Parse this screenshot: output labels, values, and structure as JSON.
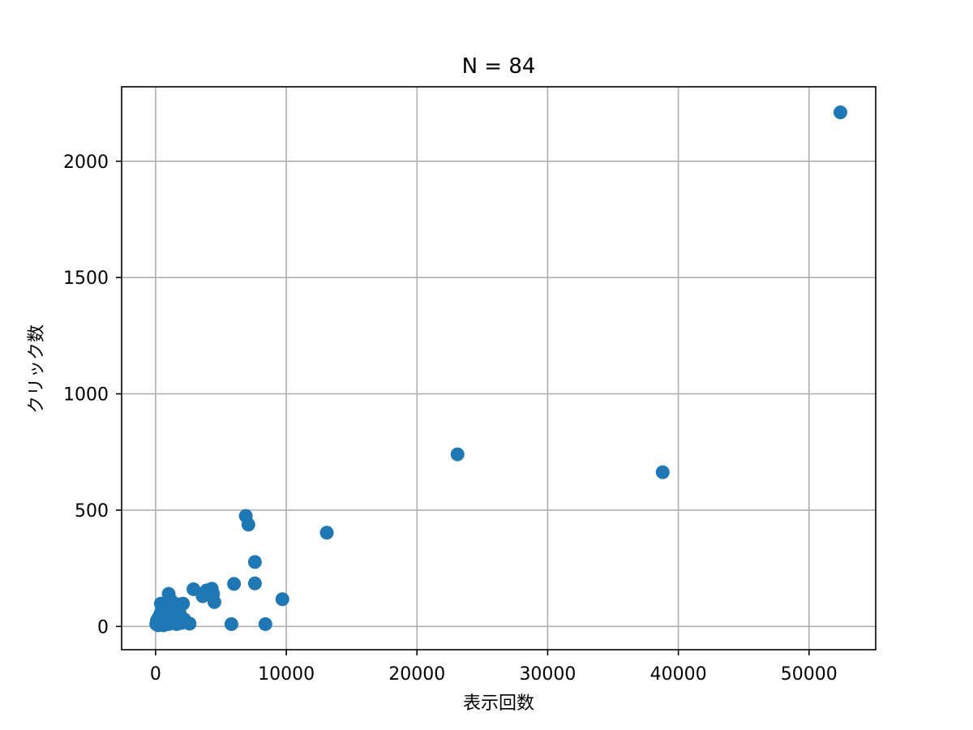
{
  "chart_data": {
    "type": "scatter",
    "title": "N = 84",
    "xlabel": "表示回数",
    "ylabel": "クリック数",
    "xlim": [
      -2600,
      55100
    ],
    "ylim": [
      -100,
      2320
    ],
    "xticks": [
      0,
      10000,
      20000,
      30000,
      40000,
      50000
    ],
    "yticks": [
      0,
      500,
      1000,
      1500,
      2000
    ],
    "grid": true,
    "point_color": "#1f77b4",
    "points": [
      [
        52400,
        2210
      ],
      [
        23100,
        740
      ],
      [
        38800,
        663
      ],
      [
        13100,
        403
      ],
      [
        6900,
        475
      ],
      [
        7100,
        438
      ],
      [
        7600,
        277
      ],
      [
        9700,
        117
      ],
      [
        7600,
        185
      ],
      [
        6000,
        183
      ],
      [
        5800,
        10
      ],
      [
        8400,
        10
      ],
      [
        2900,
        160
      ],
      [
        3600,
        130
      ],
      [
        3900,
        155
      ],
      [
        4300,
        162
      ],
      [
        4400,
        140
      ],
      [
        4500,
        105
      ],
      [
        2600,
        12
      ],
      [
        1000,
        140
      ],
      [
        400,
        98
      ],
      [
        600,
        95
      ],
      [
        800,
        90
      ],
      [
        1200,
        75
      ],
      [
        1500,
        60
      ],
      [
        1700,
        95
      ],
      [
        2100,
        98
      ],
      [
        1900,
        40
      ],
      [
        1400,
        20
      ],
      [
        1100,
        30
      ],
      [
        900,
        15
      ],
      [
        700,
        12
      ],
      [
        500,
        10
      ],
      [
        300,
        8
      ],
      [
        100,
        12
      ],
      [
        150,
        20
      ],
      [
        250,
        15
      ],
      [
        350,
        30
      ],
      [
        450,
        40
      ],
      [
        550,
        50
      ],
      [
        650,
        60
      ],
      [
        750,
        55
      ],
      [
        850,
        70
      ],
      [
        950,
        45
      ],
      [
        1050,
        65
      ],
      [
        1150,
        50
      ],
      [
        1250,
        35
      ],
      [
        1350,
        80
      ],
      [
        1450,
        25
      ],
      [
        1550,
        45
      ],
      [
        1650,
        35
      ],
      [
        1750,
        20
      ],
      [
        200,
        5
      ],
      [
        600,
        5
      ],
      [
        800,
        25
      ],
      [
        1000,
        10
      ],
      [
        1300,
        15
      ],
      [
        1600,
        10
      ],
      [
        1800,
        25
      ],
      [
        2000,
        15
      ],
      [
        400,
        60
      ],
      [
        500,
        75
      ],
      [
        700,
        80
      ],
      [
        900,
        100
      ],
      [
        1100,
        90
      ],
      [
        1200,
        110
      ],
      [
        300,
        45
      ],
      [
        200,
        35
      ],
      [
        100,
        25
      ],
      [
        50,
        10
      ],
      [
        650,
        35
      ],
      [
        750,
        20
      ],
      [
        850,
        40
      ],
      [
        950,
        30
      ],
      [
        1050,
        20
      ],
      [
        1150,
        15
      ],
      [
        1250,
        55
      ],
      [
        1350,
        40
      ],
      [
        1450,
        70
      ],
      [
        1550,
        30
      ],
      [
        1650,
        50
      ],
      [
        1750,
        60
      ],
      [
        1850,
        55
      ],
      [
        2200,
        30
      ]
    ]
  }
}
